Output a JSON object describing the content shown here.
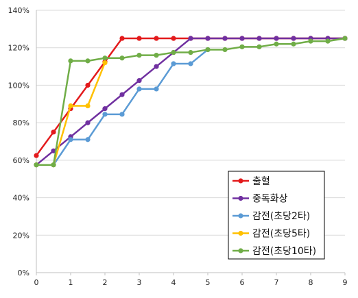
{
  "chart_data": {
    "type": "line",
    "xlim": [
      0,
      9
    ],
    "ylim": [
      0,
      140
    ],
    "x_ticks": [
      0,
      1,
      2,
      3,
      4,
      5,
      6,
      7,
      8,
      9
    ],
    "x_tick_labels": [
      "0",
      "1",
      "2",
      "3",
      "4",
      "5",
      "6",
      "7",
      "8",
      "9"
    ],
    "y_ticks": [
      0,
      20,
      40,
      60,
      80,
      100,
      120,
      140
    ],
    "y_tick_labels": [
      "0%",
      "20%",
      "40%",
      "60%",
      "80%",
      "100%",
      "120%",
      "140%"
    ],
    "grid": "horizontal",
    "legend_position": "bottom-right",
    "series": [
      {
        "name": "출혈",
        "color": "#e31a1c",
        "points": [
          [
            0,
            62.5
          ],
          [
            0.5,
            75
          ],
          [
            1,
            87.5
          ],
          [
            1.5,
            100
          ],
          [
            2,
            112.5
          ],
          [
            2.5,
            125
          ],
          [
            3,
            125
          ],
          [
            3.5,
            125
          ],
          [
            4,
            125
          ],
          [
            4.5,
            125
          ],
          [
            5,
            125
          ],
          [
            5.5,
            125
          ],
          [
            6,
            125
          ],
          [
            6.5,
            125
          ],
          [
            7,
            125
          ],
          [
            7.5,
            125
          ],
          [
            8,
            125
          ],
          [
            8.5,
            125
          ],
          [
            9,
            125
          ]
        ]
      },
      {
        "name": "중독화상",
        "color": "#7030a0",
        "points": [
          [
            0,
            57.5
          ],
          [
            0.5,
            65
          ],
          [
            1,
            72.5
          ],
          [
            1.5,
            80
          ],
          [
            2,
            87.5
          ],
          [
            2.5,
            95
          ],
          [
            3,
            102.5
          ],
          [
            3.5,
            110
          ],
          [
            4,
            117.5
          ],
          [
            4.5,
            125
          ],
          [
            5,
            125
          ],
          [
            5.5,
            125
          ],
          [
            6,
            125
          ],
          [
            6.5,
            125
          ],
          [
            7,
            125
          ],
          [
            7.5,
            125
          ],
          [
            8,
            125
          ],
          [
            8.5,
            125
          ],
          [
            9,
            125
          ]
        ]
      },
      {
        "name": "감전(초당2타)",
        "color": "#5b9bd5",
        "points": [
          [
            0,
            57.5
          ],
          [
            0.5,
            57.5
          ],
          [
            1,
            71
          ],
          [
            1.5,
            71
          ],
          [
            2,
            84.5
          ],
          [
            2.5,
            84.5
          ],
          [
            3,
            98
          ],
          [
            3.5,
            98
          ],
          [
            4,
            111.5
          ],
          [
            4.5,
            111.5
          ],
          [
            5,
            119
          ]
        ]
      },
      {
        "name": "감전(초당5타)",
        "color": "#ffc000",
        "points": [
          [
            0,
            57.5
          ],
          [
            0.5,
            57.5
          ],
          [
            1,
            89
          ],
          [
            1.5,
            89
          ],
          [
            2,
            112
          ]
        ]
      },
      {
        "name": "감전(초당10타)",
        "color": "#70ad47",
        "points": [
          [
            0,
            57.5
          ],
          [
            0.5,
            57.5
          ],
          [
            1,
            113
          ],
          [
            1.5,
            113
          ],
          [
            2,
            114.5
          ],
          [
            2.5,
            114.5
          ],
          [
            3,
            116
          ],
          [
            3.5,
            116
          ],
          [
            4,
            117.5
          ],
          [
            4.5,
            117.5
          ],
          [
            5,
            119
          ],
          [
            5.5,
            119
          ],
          [
            6,
            120.5
          ],
          [
            6.5,
            120.5
          ],
          [
            7,
            122
          ],
          [
            7.5,
            122
          ],
          [
            8,
            123.5
          ],
          [
            8.5,
            123.5
          ],
          [
            9,
            125
          ]
        ]
      }
    ]
  }
}
